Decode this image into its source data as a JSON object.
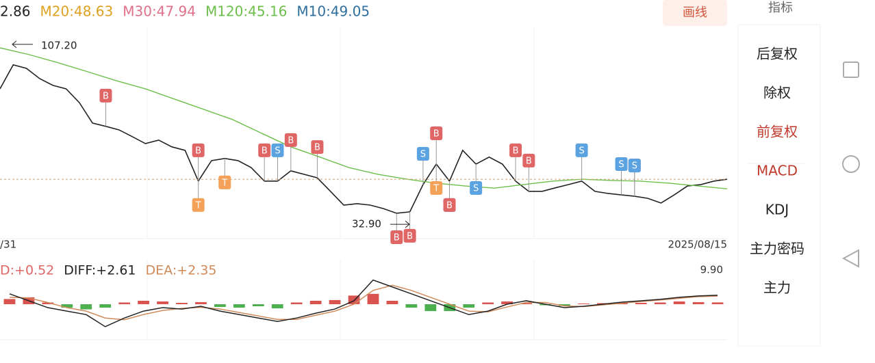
{
  "chart_data": [
    {
      "type": "line",
      "legend": [
        {
          "text": "2.86",
          "color": "#222222"
        },
        {
          "text": "M20:48.63",
          "color": "#e0a020"
        },
        {
          "text": "M30:47.94",
          "color": "#e0708a"
        },
        {
          "text": "M120:45.16",
          "color": "#6cbf4a"
        },
        {
          "text": "M10:49.05",
          "color": "#2f6f9f"
        }
      ],
      "ylim": [
        25,
        114.5
      ],
      "series": [
        {
          "color": "#222222",
          "values": [
            88.1,
            98.4,
            96.9,
            92.5,
            89.6,
            88.1,
            82.2,
            73.4,
            72.0,
            70.5,
            67.6,
            64.6,
            66.1,
            63.2,
            61.7,
            48.5,
            57.3,
            58.2,
            57.3,
            54.3,
            48.5,
            48.5,
            52.9,
            51.4,
            49.9,
            44.1,
            38.2,
            38.8,
            38.2,
            36.7,
            34.7,
            35.3,
            47.0,
            55.8,
            48.5,
            61.7,
            55.8,
            58.8,
            55.8,
            48.5,
            44.1,
            44.1,
            45.6,
            47.0,
            48.5,
            44.1,
            43.2,
            42.6,
            42.0,
            41.1,
            39.1,
            42.6,
            46.4,
            47.0,
            48.5,
            49.3
          ]
        },
        {
          "color": "#6cbf4a",
          "values": [
            105.7,
            102.8,
            99.3,
            95.5,
            91.6,
            88.1,
            83.7,
            79.3,
            74.9,
            69.0,
            63.2,
            58.8,
            54.3,
            51.4,
            49.3,
            47.6,
            46.4,
            45.5,
            47.0,
            48.5,
            49.3,
            48.8,
            48.5,
            47.6,
            46.4,
            45.2
          ]
        }
      ],
      "annotations": {
        "max": {
          "value": 107.2,
          "label": "107.20"
        },
        "min": {
          "value": 32.9,
          "label": "32.90"
        }
      },
      "x_labels": [
        "/31",
        "2025/08/15"
      ],
      "markers": [
        {
          "label": "B",
          "i": 8,
          "side": "up"
        },
        {
          "label": "B",
          "i": 15,
          "side": "up"
        },
        {
          "label": "T",
          "i": 15,
          "side": "down"
        },
        {
          "label": "T",
          "i": 17,
          "side": "down"
        },
        {
          "label": "B",
          "i": 20,
          "side": "up"
        },
        {
          "label": "S",
          "i": 21,
          "side": "up"
        },
        {
          "label": "B",
          "i": 22,
          "side": "up"
        },
        {
          "label": "B",
          "i": 24,
          "side": "up"
        },
        {
          "label": "B",
          "i": 30,
          "side": "down"
        },
        {
          "label": "B",
          "i": 31,
          "side": "down"
        },
        {
          "label": "S",
          "i": 32,
          "side": "up"
        },
        {
          "label": "B",
          "i": 33,
          "side": "up"
        },
        {
          "label": "T",
          "i": 33,
          "side": "down"
        },
        {
          "label": "S",
          "i": 34,
          "side": "down"
        },
        {
          "label": "B",
          "i": 34,
          "side": "down"
        },
        {
          "label": "S",
          "i": 36,
          "side": "down"
        },
        {
          "label": "B",
          "i": 39,
          "side": "up"
        },
        {
          "label": "B",
          "i": 40,
          "side": "up"
        },
        {
          "label": "S",
          "i": 44,
          "side": "up"
        },
        {
          "label": "S",
          "i": 47,
          "side": "up"
        },
        {
          "label": "B",
          "i": 48,
          "side": "up"
        },
        {
          "label": "S",
          "i": 48,
          "side": "up"
        }
      ],
      "marker_colors": {
        "B": "#e06666",
        "S": "#5ba3e0",
        "T": "#f4a259"
      }
    },
    {
      "type": "macd",
      "legend": [
        {
          "text": "D:+0.52",
          "color": "#e06666"
        },
        {
          "text": "DIFF:+2.61",
          "color": "#222222"
        },
        {
          "text": "DEA:+2.35",
          "color": "#d08a5a"
        }
      ],
      "ylim": [
        -9.9,
        9.9
      ],
      "yticks": [
        {
          "value": 9.9,
          "label": "9.90"
        }
      ],
      "diff": [
        3,
        1,
        -1,
        -2,
        -3,
        -6.5,
        -4,
        -2,
        -1,
        -1.4,
        -0.6,
        -2,
        -3,
        -4,
        -5,
        -4,
        -2.6,
        -1.4,
        1,
        7,
        5,
        3,
        1,
        -1,
        -3,
        -2,
        0,
        1,
        0,
        -1,
        -0.6,
        0,
        0.6,
        1,
        1.4,
        2,
        2.4,
        2.61
      ],
      "dea": [
        2,
        1.8,
        0.5,
        -1,
        -2,
        -4,
        -4.5,
        -3,
        -1.8,
        -1.2,
        -0.9,
        -1.4,
        -2.4,
        -3.4,
        -4.4,
        -4.4,
        -3.2,
        -2,
        0,
        4,
        5.5,
        4,
        2,
        0,
        -2,
        -2.2,
        -0.8,
        0.5,
        0.5,
        -0.5,
        -0.7,
        -0.2,
        0.3,
        0.8,
        1.2,
        1.7,
        2.2,
        2.35
      ],
      "hist": [
        1.5,
        2,
        0.5,
        -1,
        -1.5,
        -1,
        0.5,
        1,
        0.8,
        0.4,
        0.6,
        -0.8,
        -1,
        -0.6,
        -1.2,
        0.5,
        1,
        1.2,
        2.5,
        3,
        1,
        -1,
        -2,
        -2,
        -1,
        0.5,
        0.8,
        0.3,
        -0.3,
        -0.5,
        0.2,
        0.3,
        0.4,
        0.4,
        0.5,
        0.8,
        0.6,
        0.52
      ],
      "colors": {
        "diff": "#222222",
        "dea": "#d08a5a",
        "up": "#d9534f",
        "down": "#4caf50"
      }
    }
  ],
  "ui": {
    "draw": "画线",
    "indicator": "指标",
    "menu": [
      "后复权",
      "除权",
      "前复权",
      "MACD",
      "KDJ",
      "主力密码",
      "主力"
    ]
  }
}
